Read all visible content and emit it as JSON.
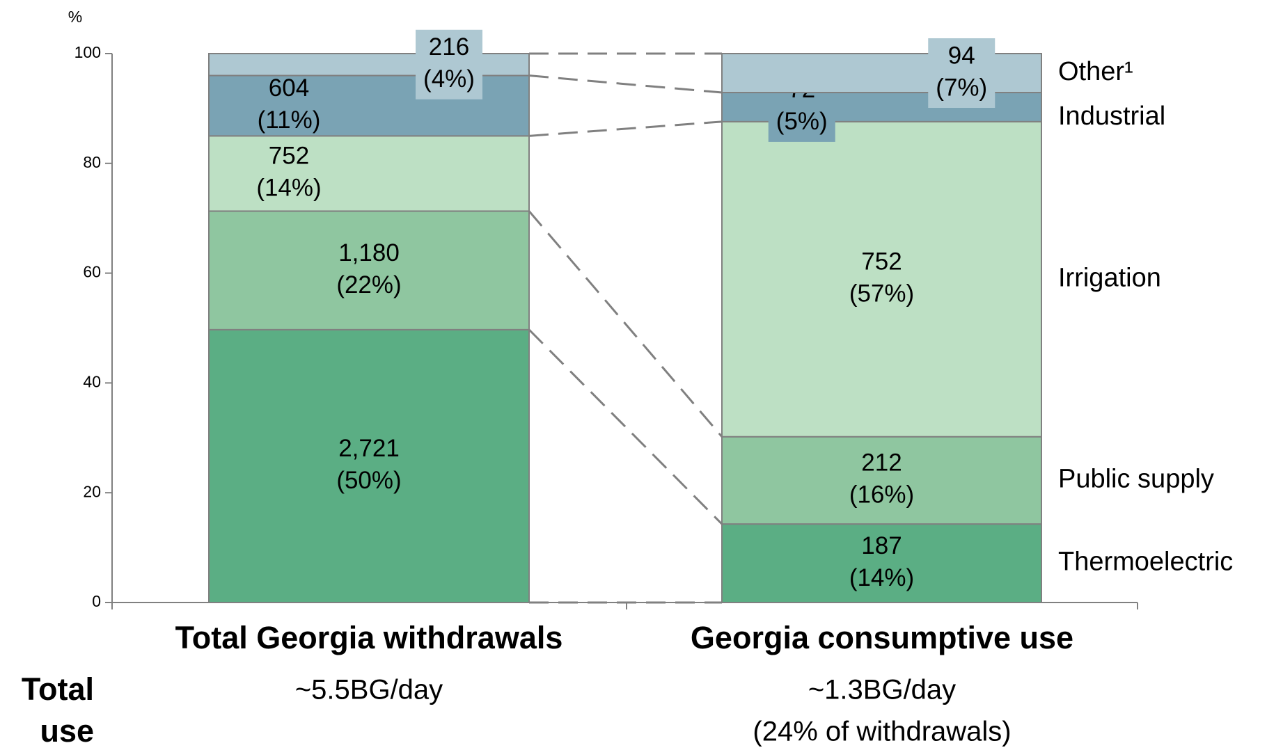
{
  "chart_data": {
    "type": "stacked_bar_100",
    "y_unit": "%",
    "categories": [
      "Total Georgia withdrawals",
      "Georgia consumptive use"
    ],
    "category_sublabels": [
      [
        "~5.5BG/day"
      ],
      [
        "~1.3BG/day",
        "(24% of withdrawals)"
      ]
    ],
    "row_label": [
      "Total",
      "use"
    ],
    "ylim": [
      0,
      100
    ],
    "yticks": [
      0,
      20,
      40,
      60,
      80,
      100
    ],
    "grid": false,
    "series": [
      {
        "name": "Thermoelectric",
        "color": "#5bae84",
        "values": [
          49.7,
          14.3
        ],
        "value_labels": [
          "(50%)",
          "(14%)"
        ],
        "amounts": [
          2721,
          187
        ],
        "amount_labels": [
          "2,721",
          "187"
        ]
      },
      {
        "name": "Public supply",
        "color": "#8fc6a0",
        "values": [
          21.6,
          15.9
        ],
        "value_labels": [
          "(22%)",
          "(16%)"
        ],
        "amounts": [
          1180,
          212
        ],
        "amount_labels": [
          "1,180",
          "212"
        ]
      },
      {
        "name": "Irrigation",
        "color": "#bde0c4",
        "values": [
          13.7,
          57.4
        ],
        "value_labels": [
          "(14%)",
          "(57%)"
        ],
        "amounts": [
          752,
          752
        ],
        "amount_labels": [
          "752",
          "752"
        ]
      },
      {
        "name": "Industrial",
        "color": "#7aa3b4",
        "values": [
          11.0,
          5.3
        ],
        "value_labels": [
          "(11%)",
          "(5%)"
        ],
        "amounts": [
          604,
          72
        ],
        "amount_labels": [
          "604",
          "72"
        ]
      },
      {
        "name": "Other¹",
        "color": "#aec8d2",
        "values": [
          4.0,
          7.1
        ],
        "value_labels": [
          "(4%)",
          "(7%)"
        ],
        "amounts": [
          216,
          94
        ],
        "amount_labels": [
          "216",
          "94"
        ]
      }
    ]
  }
}
